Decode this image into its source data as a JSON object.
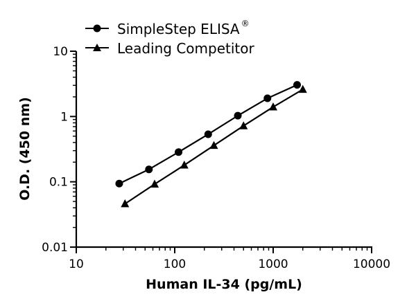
{
  "chart_data": {
    "type": "line",
    "xlabel": "Human IL-34 (pg/mL)",
    "ylabel": "O.D. (450 nm)",
    "xscale": "log",
    "yscale": "log",
    "xlim": [
      10,
      10000
    ],
    "ylim": [
      0.01,
      10
    ],
    "x_ticks": [
      "10",
      "100",
      "1000",
      "10000"
    ],
    "y_ticks": [
      "0.01",
      "0.1",
      "1",
      "10"
    ],
    "grid": false,
    "legend_position": "top-left",
    "series": [
      {
        "name": "SimpleStep ELISA",
        "name_superscript": "®",
        "marker": "circle",
        "color": "#000000",
        "x": [
          27.3,
          54.7,
          109.4,
          218.8,
          437.5,
          875,
          1750
        ],
        "y": [
          0.094,
          0.155,
          0.285,
          0.535,
          1.03,
          1.9,
          3.05
        ]
      },
      {
        "name": "Leading Competitor",
        "marker": "triangle",
        "color": "#000000",
        "x": [
          31.25,
          62.5,
          125,
          250,
          500,
          1000,
          2000
        ],
        "y": [
          0.046,
          0.092,
          0.18,
          0.36,
          0.72,
          1.4,
          2.6
        ]
      }
    ]
  }
}
